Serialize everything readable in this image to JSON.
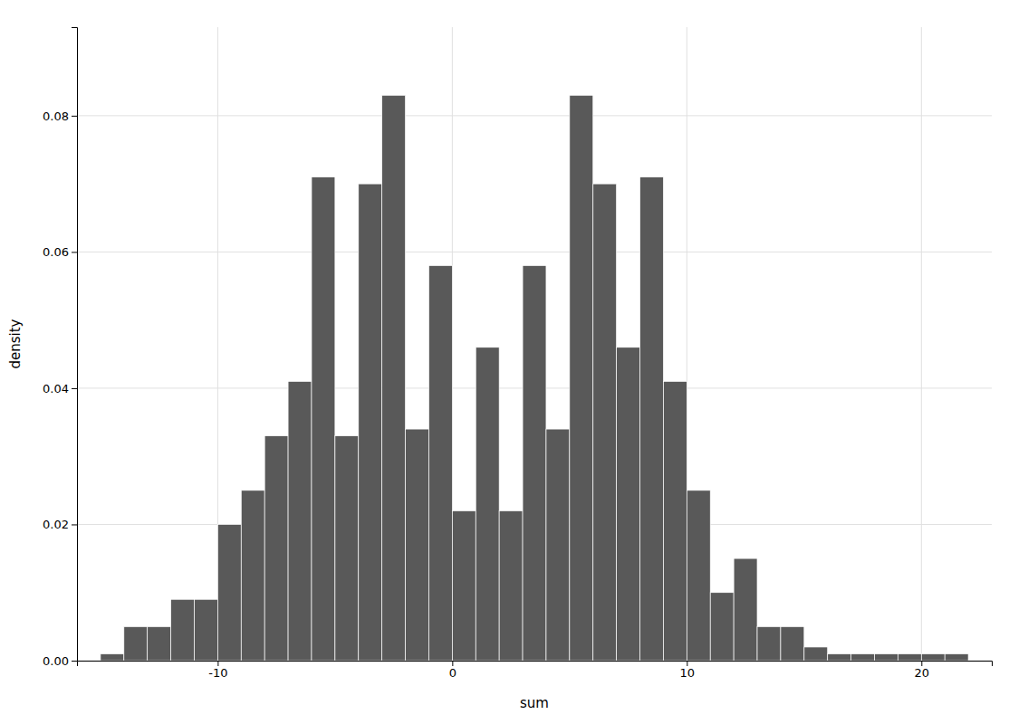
{
  "chart_data": {
    "type": "histogram",
    "xlabel": "sum",
    "ylabel": "density",
    "color": "#595959",
    "grid": true,
    "xlim": [
      -16.0,
      23.0
    ],
    "ylim": [
      0.0,
      0.093
    ],
    "xticks": [
      -10,
      0,
      10,
      20
    ],
    "yticks": [
      {
        "value": 0.0,
        "label": "0.00"
      },
      0.02,
      0.04,
      0.06,
      0.08
    ],
    "bins": [
      -15,
      -14,
      -13,
      -12,
      -11,
      -10,
      -9,
      -8,
      -7,
      -6,
      -5,
      -4,
      -3,
      -2,
      -1,
      0,
      1,
      2,
      3,
      4,
      5,
      6,
      7,
      8,
      9,
      10,
      11,
      12,
      13,
      14,
      15,
      16,
      17,
      18,
      19,
      20,
      21,
      22
    ],
    "values": [
      0.001,
      0.005,
      0.005,
      0.009,
      0.009,
      0.02,
      0.025,
      0.033,
      0.041,
      0.071,
      0.033,
      0.07,
      0.083,
      0.034,
      0.058,
      0.022,
      0.046,
      0.022,
      0.058,
      0.034,
      0.083,
      0.07,
      0.046,
      0.071,
      0.041,
      0.025,
      0.01,
      0.015,
      0.005,
      0.005,
      0.002,
      0.001,
      0.001,
      0.001,
      0.001,
      0.001,
      0.001
    ]
  }
}
